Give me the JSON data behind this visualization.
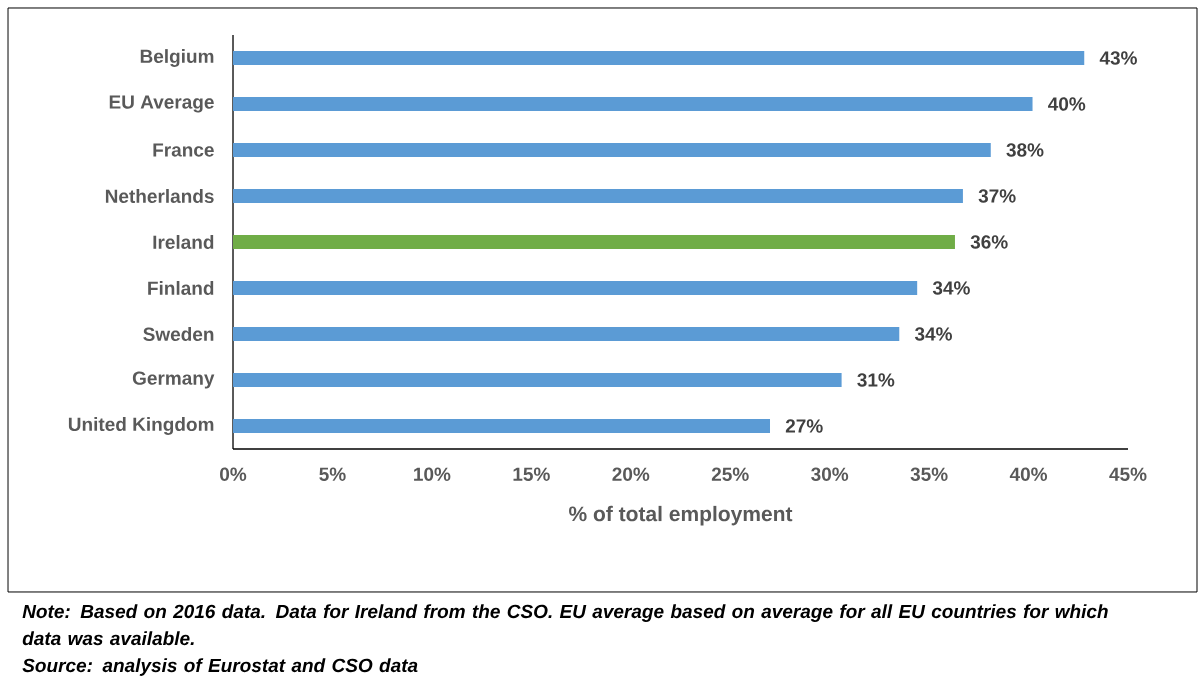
{
  "chart_data": {
    "type": "bar",
    "orientation": "horizontal",
    "categories": [
      "Belgium",
      "EU Average",
      "France",
      "Netherlands",
      "Ireland",
      "Finland",
      "Sweden",
      "Germany",
      "United Kingdom"
    ],
    "values": [
      42.8,
      40.2,
      38.1,
      36.7,
      36.3,
      34.4,
      33.5,
      30.6,
      27.0
    ],
    "value_labels": [
      "43%",
      "40%",
      "38%",
      "37%",
      "36%",
      "34%",
      "34%",
      "31%",
      "27%"
    ],
    "colors": [
      "#5b9bd5",
      "#5b9bd5",
      "#5b9bd5",
      "#5b9bd5",
      "#70ad47",
      "#5b9bd5",
      "#5b9bd5",
      "#5b9bd5",
      "#5b9bd5"
    ],
    "xlabel": "% of total employment",
    "xlim": [
      0,
      45
    ],
    "xticks": [
      {
        "value": 0,
        "label": "0%"
      },
      {
        "value": 5,
        "label": "5%"
      },
      {
        "value": 10,
        "label": "10%"
      },
      {
        "value": 15,
        "label": "15%"
      },
      {
        "value": 20,
        "label": "20%"
      },
      {
        "value": 25,
        "label": "25%"
      },
      {
        "value": 30,
        "label": "30%"
      },
      {
        "value": 35,
        "label": "35%"
      },
      {
        "value": 40,
        "label": "40%"
      },
      {
        "value": 45,
        "label": "45%"
      }
    ],
    "annotations": [
      "Note: Based on 2016 data. Data for Ireland from the CSO. EU average based on average for all EU countries for which data was available.",
      "Source: analysis of Eurostat and CSO data"
    ]
  }
}
